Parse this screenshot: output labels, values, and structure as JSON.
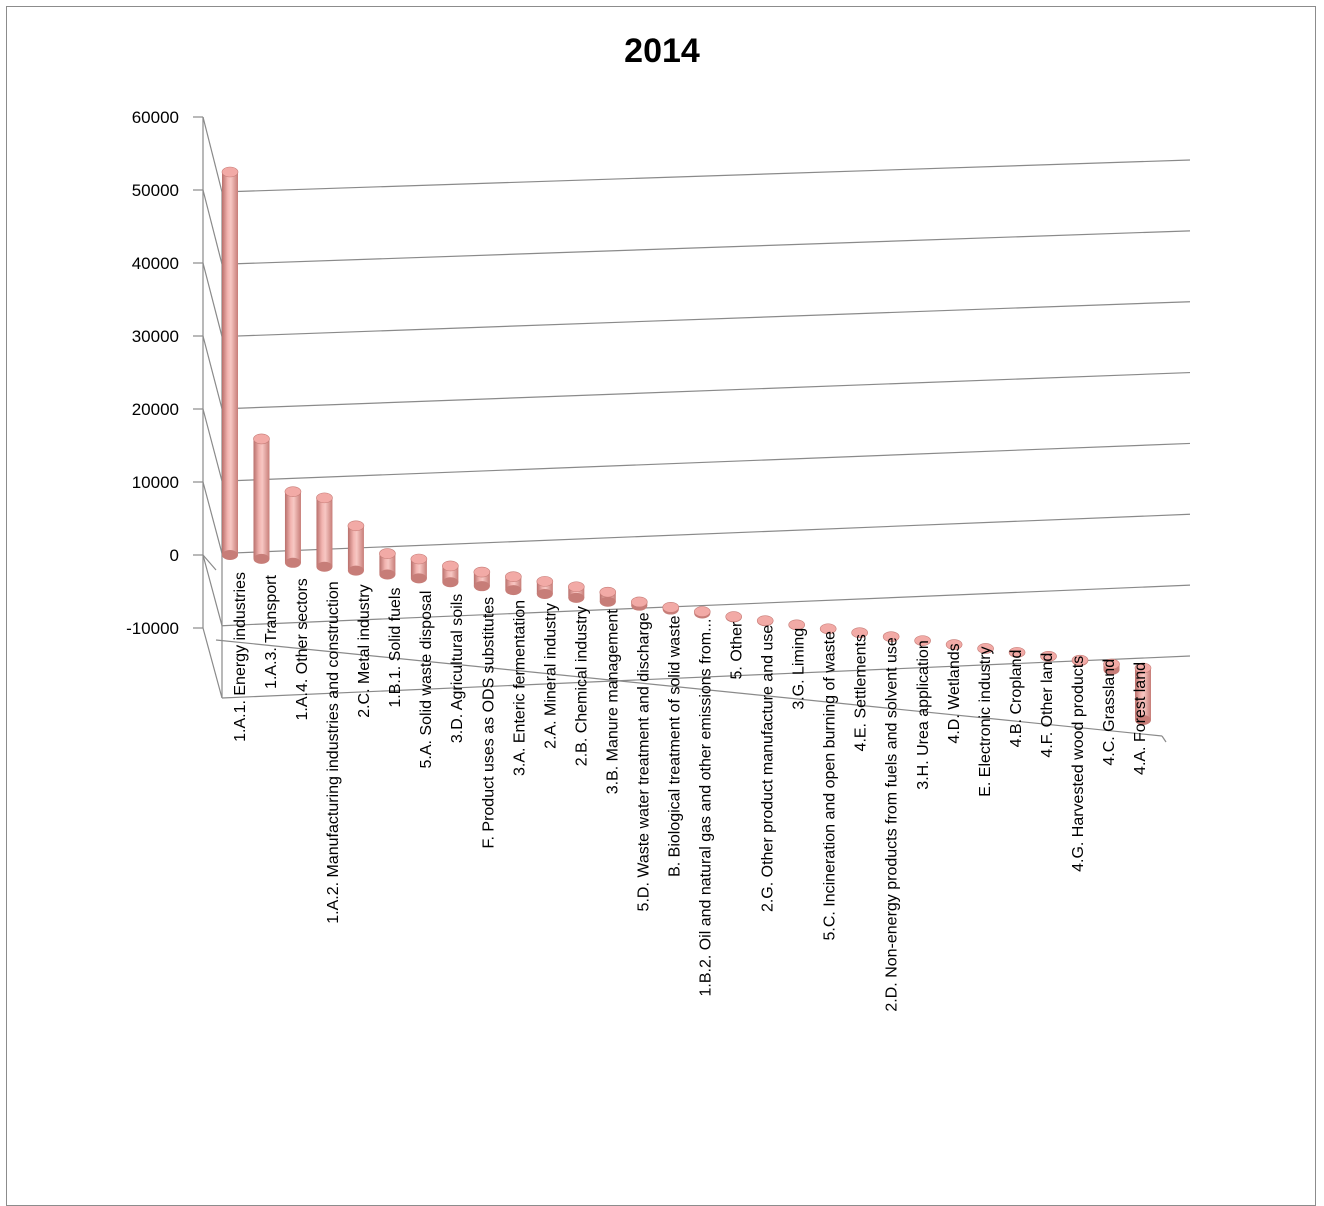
{
  "chart_data": {
    "type": "bar",
    "style": "3d-cylinder",
    "title": "2014",
    "xlabel": "",
    "ylabel": "",
    "ylim": [
      -10000,
      60000
    ],
    "yticks": [
      -10000,
      0,
      10000,
      20000,
      30000,
      40000,
      50000,
      60000
    ],
    "grid": true,
    "legend": "none",
    "bar_color": "#e8a09c",
    "categories": [
      "1.A.1.  Energy industries",
      "1.A.3.  Transport",
      "1.A.4.  Other sectors",
      "1.A.2.  Manufacturing industries and construction",
      "2.C.  Metal industry",
      "1.B.1.  Solid fuels",
      "5.A.  Solid waste disposal",
      "3.D.  Agricultural soils",
      "F.  Product uses as ODS substitutes",
      "3.A.  Enteric fermentation",
      "2.A.  Mineral industry",
      "2.B.  Chemical industry",
      "3.B.  Manure management",
      "5.D.  Waste water treatment and discharge",
      "B.  Biological treatment of solid waste",
      "1.B.2.  Oil and natural gas and other emissions from...",
      "5.  Other",
      "2.G.  Other product manufacture and use",
      "3.G. Liming",
      "5.C.  Incineration and open burning of waste",
      "4.E.  Settlements",
      "2.D.  Non-energy products from fuels and solvent use",
      "3.H. Urea application",
      "4.D.  Wetlands",
      "E.  Electronic industry",
      "4.B.  Cropland",
      "4.F.  Other land",
      "4.G.  Harvested wood products",
      "4.C.  Grassland",
      "4.A.  Forest land"
    ],
    "values": [
      51000,
      16000,
      9500,
      9200,
      6000,
      2800,
      2600,
      2200,
      1900,
      1800,
      1700,
      1500,
      1300,
      500,
      300,
      250,
      100,
      80,
      50,
      40,
      30,
      20,
      15,
      10,
      5,
      5,
      0,
      -100,
      -800,
      -7200
    ]
  }
}
